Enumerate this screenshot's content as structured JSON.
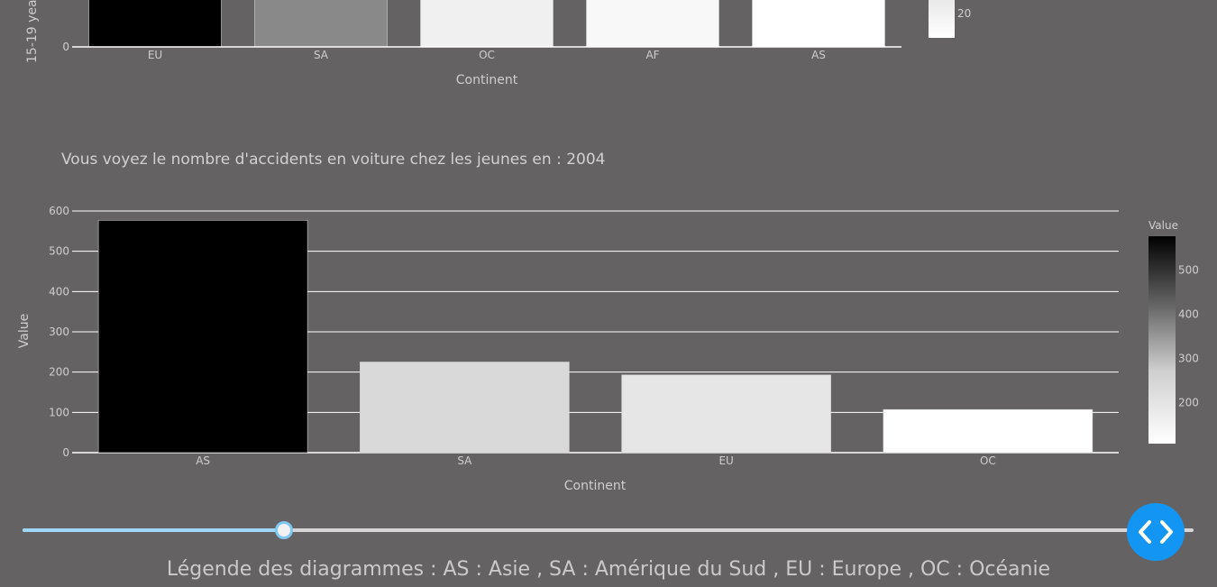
{
  "top_chart": {
    "xlabel": "Continent",
    "ylabel_partial": "15-19 yea",
    "categories": [
      "EU",
      "SA",
      "OC",
      "AF",
      "AS"
    ],
    "bar_colors": [
      "#000000",
      "#898989",
      "#f0f0f0",
      "#f8f8f8",
      "#ffffff"
    ],
    "visible_yticks": [
      "0"
    ],
    "colorbar_tick": "20"
  },
  "chart_data": {
    "type": "bar",
    "title": "Vous voyez le nombre d'accidents en voiture chez les jeunes en : 2004",
    "xlabel": "Continent",
    "ylabel": "Value",
    "categories": [
      "AS",
      "SA",
      "EU",
      "OC"
    ],
    "values": [
      577,
      225,
      193,
      107
    ],
    "bar_colors": [
      "#000000",
      "#d9d9d9",
      "#e6e6e6",
      "#ffffff"
    ],
    "ylim": [
      0,
      600
    ],
    "yticks": [
      0,
      100,
      200,
      300,
      400,
      500,
      600
    ],
    "grid": true,
    "colorbar": {
      "title": "Value",
      "ticks": [
        200,
        300,
        400,
        500
      ],
      "range": [
        107,
        577
      ]
    }
  },
  "slider": {
    "value_fraction": 0.223
  },
  "legend": {
    "text": "Légende des diagrammes : AS : Asie , SA : Amérique du Sud , EU : Europe , OC : Océanie"
  }
}
